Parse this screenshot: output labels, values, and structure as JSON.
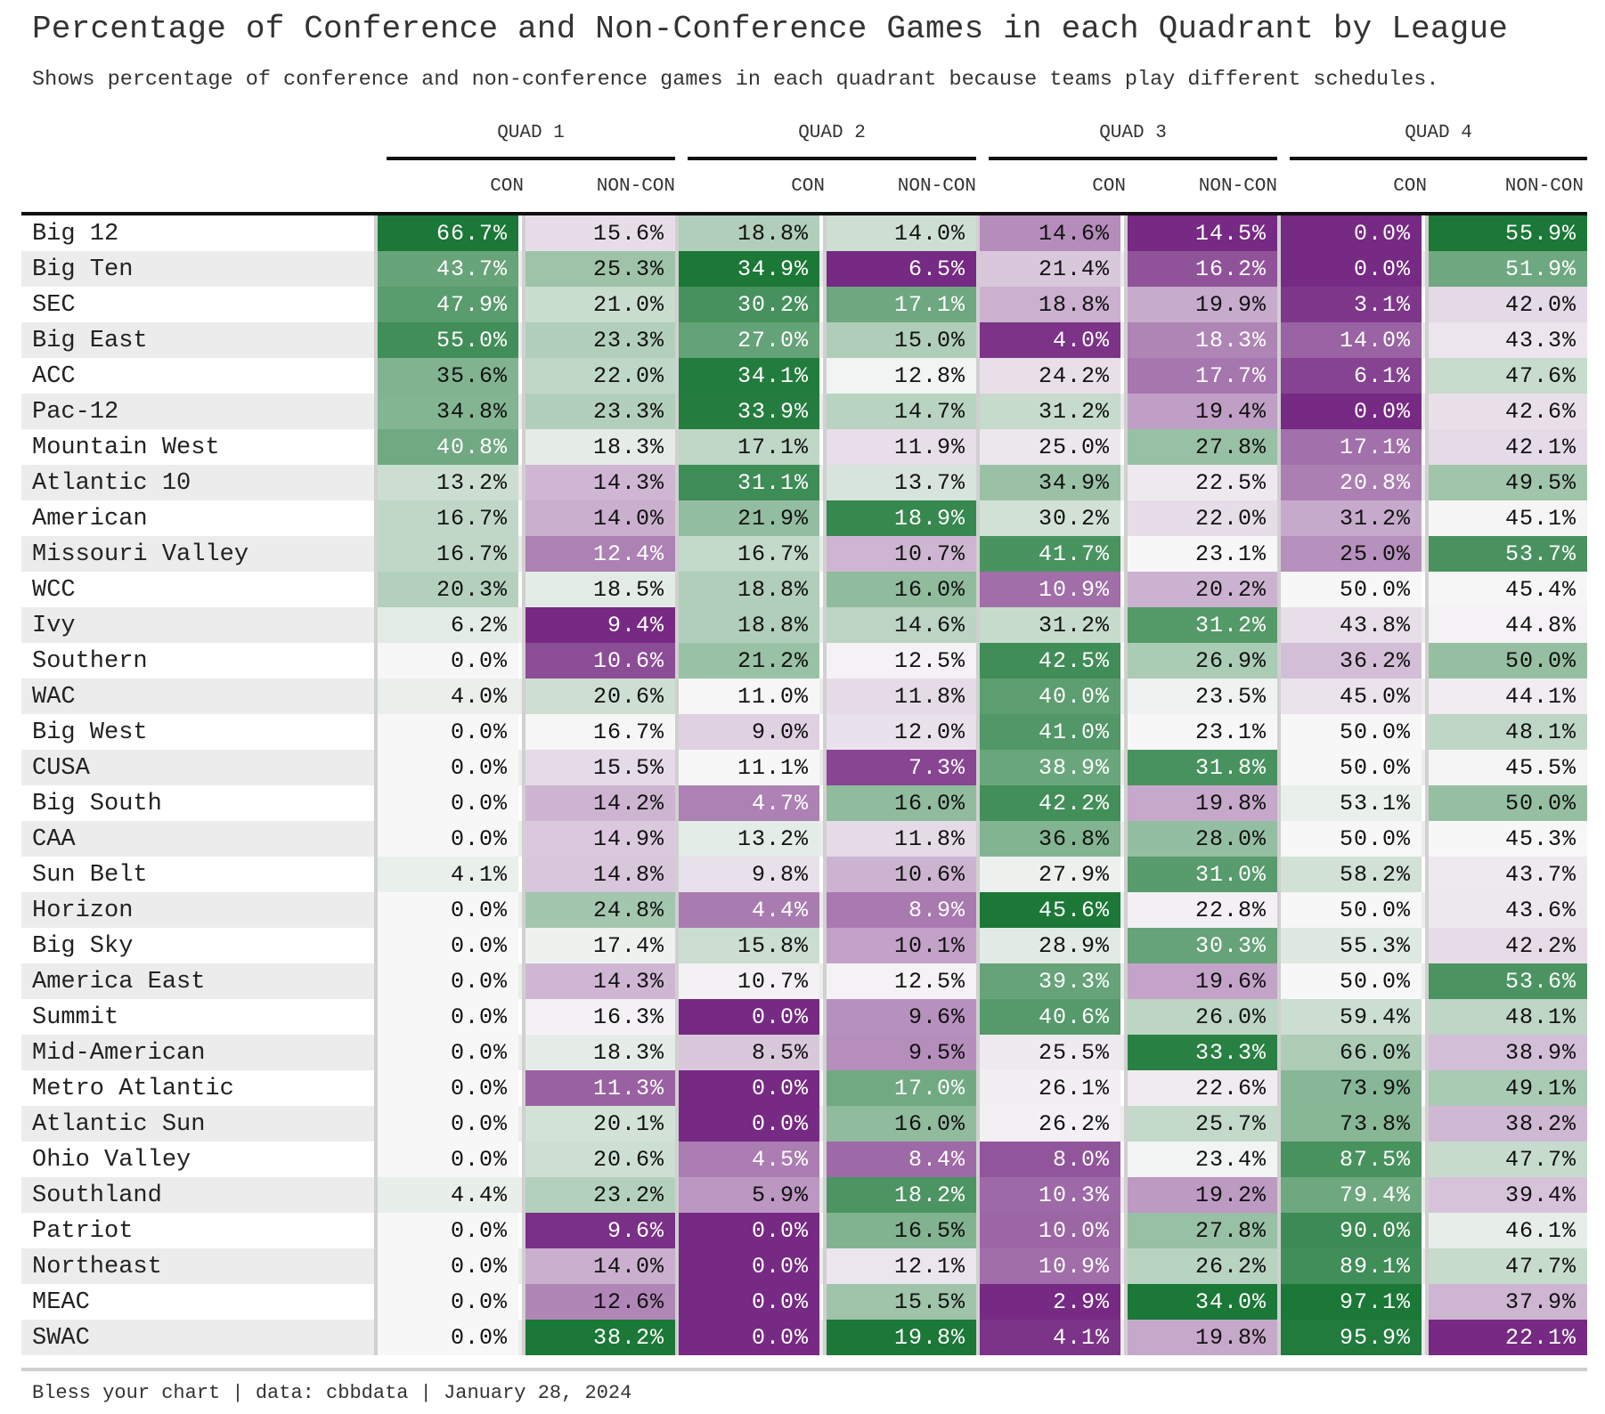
{
  "chart_data": {
    "type": "table",
    "title": "Percentage of Conference and Non-Conference Games in each Quadrant by League",
    "subtitle": "Shows percentage of conference and non-conference games in each quadrant because teams play different schedules.",
    "quadrants": [
      "QUAD 1",
      "QUAD 2",
      "QUAD 3",
      "QUAD 4"
    ],
    "sub_columns": [
      "CON",
      "NON-CON"
    ],
    "color_scale": {
      "low": "#762a83",
      "mid": "#f7f7f7",
      "high": "#1b7837",
      "scope": "per column"
    },
    "rows": [
      {
        "league": "Big 12",
        "values": [
          66.7,
          15.6,
          18.8,
          14.0,
          14.6,
          14.5,
          0.0,
          55.9
        ]
      },
      {
        "league": "Big Ten",
        "values": [
          43.7,
          25.3,
          34.9,
          6.5,
          21.4,
          16.2,
          0.0,
          51.9
        ]
      },
      {
        "league": "SEC",
        "values": [
          47.9,
          21.0,
          30.2,
          17.1,
          18.8,
          19.9,
          3.1,
          42.0
        ]
      },
      {
        "league": "Big East",
        "values": [
          55.0,
          23.3,
          27.0,
          15.0,
          4.0,
          18.3,
          14.0,
          43.3
        ]
      },
      {
        "league": "ACC",
        "values": [
          35.6,
          22.0,
          34.1,
          12.8,
          24.2,
          17.7,
          6.1,
          47.6
        ]
      },
      {
        "league": "Pac-12",
        "values": [
          34.8,
          23.3,
          33.9,
          14.7,
          31.2,
          19.4,
          0.0,
          42.6
        ]
      },
      {
        "league": "Mountain West",
        "values": [
          40.8,
          18.3,
          17.1,
          11.9,
          25.0,
          27.8,
          17.1,
          42.1
        ]
      },
      {
        "league": "Atlantic 10",
        "values": [
          13.2,
          14.3,
          31.1,
          13.7,
          34.9,
          22.5,
          20.8,
          49.5
        ]
      },
      {
        "league": "American",
        "values": [
          16.7,
          14.0,
          21.9,
          18.9,
          30.2,
          22.0,
          31.2,
          45.1
        ]
      },
      {
        "league": "Missouri Valley",
        "values": [
          16.7,
          12.4,
          16.7,
          10.7,
          41.7,
          23.1,
          25.0,
          53.7
        ]
      },
      {
        "league": "WCC",
        "values": [
          20.3,
          18.5,
          18.8,
          16.0,
          10.9,
          20.2,
          50.0,
          45.4
        ]
      },
      {
        "league": "Ivy",
        "values": [
          6.2,
          9.4,
          18.8,
          14.6,
          31.2,
          31.2,
          43.8,
          44.8
        ]
      },
      {
        "league": "Southern",
        "values": [
          0.0,
          10.6,
          21.2,
          12.5,
          42.5,
          26.9,
          36.2,
          50.0
        ]
      },
      {
        "league": "WAC",
        "values": [
          4.0,
          20.6,
          11.0,
          11.8,
          40.0,
          23.5,
          45.0,
          44.1
        ]
      },
      {
        "league": "Big West",
        "values": [
          0.0,
          16.7,
          9.0,
          12.0,
          41.0,
          23.1,
          50.0,
          48.1
        ]
      },
      {
        "league": "CUSA",
        "values": [
          0.0,
          15.5,
          11.1,
          7.3,
          38.9,
          31.8,
          50.0,
          45.5
        ]
      },
      {
        "league": "Big South",
        "values": [
          0.0,
          14.2,
          4.7,
          16.0,
          42.2,
          19.8,
          53.1,
          50.0
        ]
      },
      {
        "league": "CAA",
        "values": [
          0.0,
          14.9,
          13.2,
          11.8,
          36.8,
          28.0,
          50.0,
          45.3
        ]
      },
      {
        "league": "Sun Belt",
        "values": [
          4.1,
          14.8,
          9.8,
          10.6,
          27.9,
          31.0,
          58.2,
          43.7
        ]
      },
      {
        "league": "Horizon",
        "values": [
          0.0,
          24.8,
          4.4,
          8.9,
          45.6,
          22.8,
          50.0,
          43.6
        ]
      },
      {
        "league": "Big Sky",
        "values": [
          0.0,
          17.4,
          15.8,
          10.1,
          28.9,
          30.3,
          55.3,
          42.2
        ]
      },
      {
        "league": "America East",
        "values": [
          0.0,
          14.3,
          10.7,
          12.5,
          39.3,
          19.6,
          50.0,
          53.6
        ]
      },
      {
        "league": "Summit",
        "values": [
          0.0,
          16.3,
          0.0,
          9.6,
          40.6,
          26.0,
          59.4,
          48.1
        ]
      },
      {
        "league": "Mid-American",
        "values": [
          0.0,
          18.3,
          8.5,
          9.5,
          25.5,
          33.3,
          66.0,
          38.9
        ]
      },
      {
        "league": "Metro Atlantic",
        "values": [
          0.0,
          11.3,
          0.0,
          17.0,
          26.1,
          22.6,
          73.9,
          49.1
        ]
      },
      {
        "league": "Atlantic Sun",
        "values": [
          0.0,
          20.1,
          0.0,
          16.0,
          26.2,
          25.7,
          73.8,
          38.2
        ]
      },
      {
        "league": "Ohio Valley",
        "values": [
          0.0,
          20.6,
          4.5,
          8.4,
          8.0,
          23.4,
          87.5,
          47.7
        ]
      },
      {
        "league": "Southland",
        "values": [
          4.4,
          23.2,
          5.9,
          18.2,
          10.3,
          19.2,
          79.4,
          39.4
        ]
      },
      {
        "league": "Patriot",
        "values": [
          0.0,
          9.6,
          0.0,
          16.5,
          10.0,
          27.8,
          90.0,
          46.1
        ]
      },
      {
        "league": "Northeast",
        "values": [
          0.0,
          14.0,
          0.0,
          12.1,
          10.9,
          26.2,
          89.1,
          47.7
        ]
      },
      {
        "league": "MEAC",
        "values": [
          0.0,
          12.6,
          0.0,
          15.5,
          2.9,
          34.0,
          97.1,
          37.9
        ]
      },
      {
        "league": "SWAC",
        "values": [
          0.0,
          38.2,
          0.0,
          19.8,
          4.1,
          19.8,
          95.9,
          22.1
        ]
      }
    ]
  },
  "caption": "Bless your chart | data: cbbdata | January 28, 2024"
}
